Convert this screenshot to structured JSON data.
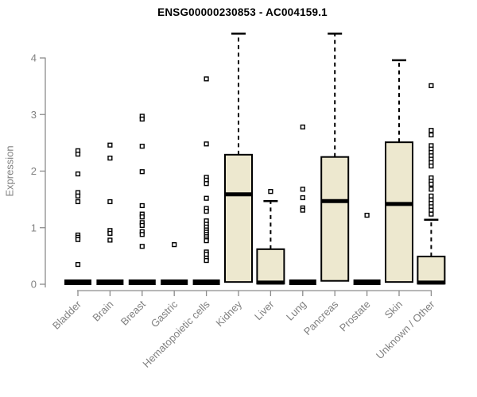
{
  "chart_data": {
    "type": "boxplot",
    "title": "ENSG00000230853 - AC004159.1",
    "ylabel": "Expression",
    "xlabel": "",
    "ylim": [
      0,
      4
    ],
    "yticks": [
      0,
      1,
      2,
      3,
      4
    ],
    "grid": false,
    "legend": "none",
    "colors": {
      "box_fill": "#EDE8CF",
      "box_stroke": "#000000",
      "axis": "#8C8C8C",
      "tick_label": "#808080",
      "title": "#000000"
    },
    "categories": [
      "Bladder",
      "Brain",
      "Breast",
      "Gastric",
      "Hematopoietic cells",
      "Kidney",
      "Liver",
      "Lung",
      "Pancreas",
      "Prostate",
      "Skin",
      "Unknown / Other"
    ],
    "series": [
      {
        "name": "Bladder",
        "q1": 0,
        "median": 0,
        "q3": 0,
        "whisker_high": null,
        "outliers": [
          2.36,
          2.3,
          1.95,
          1.62,
          1.56,
          1.46,
          0.87,
          0.83,
          0.79,
          0.35
        ]
      },
      {
        "name": "Brain",
        "q1": 0,
        "median": 0,
        "q3": 0,
        "whisker_high": null,
        "outliers": [
          2.46,
          2.23,
          1.46,
          0.95,
          0.9,
          0.78
        ]
      },
      {
        "name": "Breast",
        "q1": 0,
        "median": 0,
        "q3": 0,
        "whisker_high": null,
        "outliers": [
          2.97,
          2.92,
          2.44,
          1.99,
          1.39,
          1.24,
          1.19,
          1.09,
          1.04,
          0.93,
          0.88,
          0.67
        ]
      },
      {
        "name": "Gastric",
        "q1": 0,
        "median": 0,
        "q3": 0,
        "whisker_high": null,
        "outliers": [
          0.7
        ]
      },
      {
        "name": "Hematopoietic cells",
        "q1": 0,
        "median": 0,
        "q3": 0,
        "whisker_high": null,
        "outliers": [
          3.63,
          2.48,
          1.89,
          1.84,
          1.78,
          1.52,
          1.34,
          1.29,
          1.12,
          1.06,
          1.01,
          0.96,
          0.92,
          0.88,
          0.84,
          0.8,
          0.77,
          0.57,
          0.53,
          0.46,
          0.42
        ]
      },
      {
        "name": "Kidney",
        "q1": 0.04,
        "median": 1.59,
        "q3": 2.29,
        "whisker_high": 4.43,
        "outliers": []
      },
      {
        "name": "Liver",
        "q1": 0.01,
        "median": 0.03,
        "q3": 0.62,
        "whisker_high": 1.47,
        "outliers": [
          1.64
        ]
      },
      {
        "name": "Lung",
        "q1": 0,
        "median": 0,
        "q3": 0,
        "whisker_high": null,
        "outliers": [
          2.78,
          1.68,
          1.53,
          1.35,
          1.31
        ]
      },
      {
        "name": "Pancreas",
        "q1": 0.06,
        "median": 1.47,
        "q3": 2.25,
        "whisker_high": 4.43,
        "outliers": []
      },
      {
        "name": "Prostate",
        "q1": 0,
        "median": 0,
        "q3": 0,
        "whisker_high": null,
        "outliers": [
          1.22
        ]
      },
      {
        "name": "Skin",
        "q1": 0.04,
        "median": 1.42,
        "q3": 2.51,
        "whisker_high": 3.96,
        "outliers": []
      },
      {
        "name": "Unknown / Other",
        "q1": 0.01,
        "median": 0.03,
        "q3": 0.49,
        "whisker_high": 1.14,
        "outliers": [
          3.51,
          2.72,
          2.64,
          2.45,
          2.39,
          2.33,
          2.27,
          2.21,
          2.15,
          2.09,
          1.88,
          1.82,
          1.77,
          1.68,
          1.56,
          1.49,
          1.43,
          1.37,
          1.31,
          1.24
        ]
      }
    ]
  }
}
